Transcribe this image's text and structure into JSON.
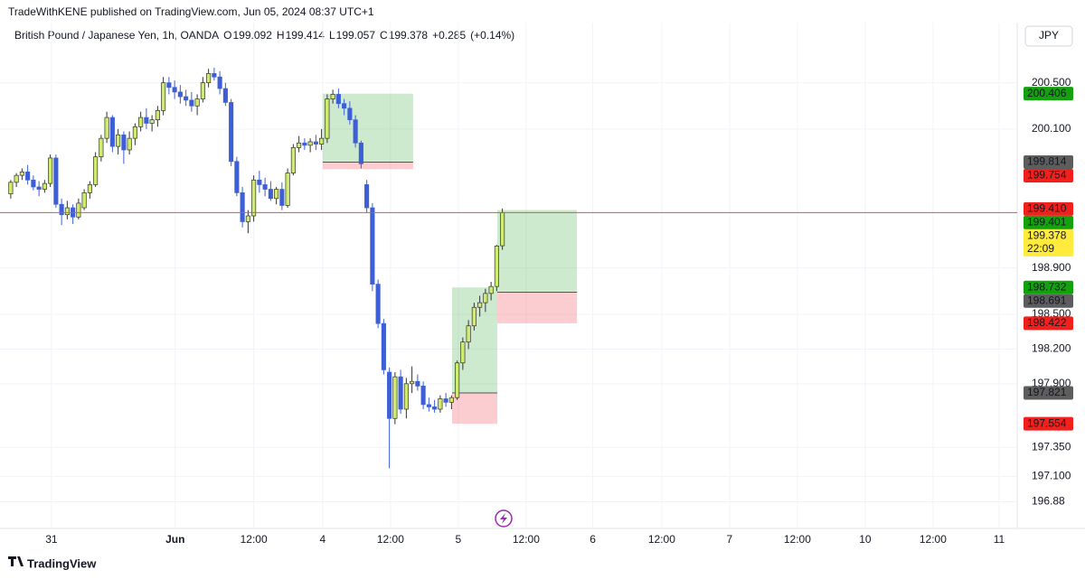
{
  "header": {
    "published": "TradeWithKENE published on TradingView.com, Jun 05, 2024 08:37 UTC+1",
    "currency": "JPY",
    "brand": "TradingView"
  },
  "chart_data": {
    "type": "candlestick",
    "title": "British Pound / Japanese Yen, 1h, OANDA",
    "ohlc": [
      {
        "label": "O",
        "value": 199.092
      },
      {
        "label": "H",
        "value": 199.414
      },
      {
        "label": "L",
        "value": 199.057
      },
      {
        "label": "C",
        "value": 199.378
      }
    ],
    "change": {
      "value": 0.285,
      "label": "+0.285"
    },
    "change_pct": {
      "value": 0.14,
      "label": "(+0.14%)"
    },
    "up_color": "#cfec6e",
    "down_color": "#3d5fd6",
    "open": [
      199.54,
      199.64,
      199.7,
      199.73,
      199.66,
      199.6,
      199.58,
      199.63,
      199.85,
      199.45,
      199.36,
      199.42,
      199.34,
      199.42,
      199.55,
      199.62,
      199.86,
      200.02,
      200.2,
      199.95,
      200.05,
      199.92,
      200.02,
      200.12,
      200.2,
      200.15,
      200.18,
      200.26,
      200.5,
      200.46,
      200.42,
      200.38,
      200.35,
      200.3,
      200.36,
      200.5,
      200.58,
      200.55,
      200.45,
      200.33,
      199.82,
      199.55,
      199.3,
      199.35,
      199.66,
      199.62,
      199.58,
      199.5,
      199.58,
      199.44,
      199.72,
      199.94,
      199.98,
      199.96,
      199.99,
      199.97,
      200.02,
      200.36,
      200.4,
      200.32,
      200.28,
      200.18,
      199.98,
      199.62,
      199.42,
      198.76,
      198.42,
      198.0,
      197.6,
      197.96,
      197.68,
      197.9,
      197.92,
      197.88,
      197.72,
      197.7,
      197.68,
      197.77,
      197.74,
      197.78,
      198.08,
      198.26,
      198.4,
      198.56,
      198.6,
      198.68,
      198.74,
      199.092
    ],
    "high": [
      199.66,
      199.72,
      199.76,
      199.79,
      199.7,
      199.65,
      199.66,
      199.88,
      199.88,
      199.5,
      199.48,
      199.45,
      199.5,
      199.58,
      199.65,
      199.9,
      200.05,
      200.25,
      200.22,
      200.1,
      200.08,
      200.08,
      200.15,
      200.25,
      200.28,
      200.22,
      200.3,
      200.55,
      200.55,
      200.52,
      200.48,
      200.44,
      200.42,
      200.4,
      200.55,
      200.62,
      200.63,
      200.6,
      200.5,
      200.36,
      199.86,
      199.6,
      199.4,
      199.7,
      199.74,
      199.68,
      199.65,
      199.6,
      199.64,
      199.76,
      199.97,
      200.04,
      200.02,
      200.02,
      200.05,
      200.1,
      200.4,
      200.44,
      200.45,
      200.36,
      200.34,
      200.22,
      200.0,
      199.66,
      199.46,
      198.8,
      198.46,
      198.04,
      198.0,
      198.02,
      197.95,
      198.05,
      197.98,
      197.92,
      197.78,
      197.76,
      197.8,
      197.82,
      197.8,
      198.1,
      198.3,
      198.45,
      198.6,
      198.66,
      198.72,
      198.78,
      199.1,
      199.414
    ],
    "low": [
      199.5,
      199.6,
      199.66,
      199.62,
      199.57,
      199.52,
      199.55,
      199.6,
      199.42,
      199.27,
      199.32,
      199.28,
      199.32,
      199.4,
      199.5,
      199.6,
      199.82,
      199.98,
      199.9,
      199.88,
      199.8,
      199.88,
      199.96,
      200.08,
      200.1,
      200.08,
      200.12,
      200.22,
      200.4,
      200.36,
      200.32,
      200.3,
      200.25,
      200.22,
      200.33,
      200.46,
      200.52,
      200.4,
      200.3,
      199.78,
      199.52,
      199.25,
      199.2,
      199.3,
      199.55,
      199.52,
      199.48,
      199.45,
      199.4,
      199.42,
      199.7,
      199.9,
      199.92,
      199.9,
      199.92,
      199.92,
      199.98,
      200.32,
      200.28,
      200.22,
      200.14,
      199.94,
      199.76,
      199.38,
      198.7,
      198.38,
      197.98,
      197.17,
      197.55,
      197.64,
      197.6,
      197.82,
      197.84,
      197.68,
      197.66,
      197.65,
      197.65,
      197.7,
      197.68,
      197.76,
      198.02,
      198.2,
      198.36,
      198.48,
      198.52,
      198.62,
      198.7,
      199.057
    ],
    "close": [
      199.64,
      199.7,
      199.73,
      199.66,
      199.6,
      199.58,
      199.63,
      199.85,
      199.45,
      199.36,
      199.42,
      199.34,
      199.46,
      199.55,
      199.62,
      199.86,
      200.02,
      200.2,
      199.95,
      200.05,
      199.92,
      200.02,
      200.12,
      200.2,
      200.15,
      200.18,
      200.26,
      200.5,
      200.46,
      200.42,
      200.38,
      200.35,
      200.3,
      200.36,
      200.5,
      200.58,
      200.55,
      200.45,
      200.33,
      199.82,
      199.55,
      199.3,
      199.35,
      199.66,
      199.62,
      199.58,
      199.5,
      199.58,
      199.44,
      199.72,
      199.94,
      199.98,
      199.96,
      199.99,
      199.97,
      200.02,
      200.36,
      200.4,
      200.32,
      200.28,
      200.18,
      199.98,
      199.8,
      199.42,
      198.76,
      198.42,
      198.02,
      197.6,
      197.96,
      197.68,
      197.9,
      197.92,
      197.88,
      197.72,
      197.7,
      197.68,
      197.77,
      197.74,
      197.78,
      198.08,
      198.26,
      198.4,
      198.56,
      198.6,
      198.68,
      198.74,
      199.09,
      199.378
    ],
    "xlim": [
      -0.3,
      178.1
    ],
    "xticks": [
      {
        "value": 7.2,
        "label": "31"
      },
      {
        "value": 29.1,
        "label": "Jun"
      },
      {
        "value": 43,
        "label": "12:00"
      },
      {
        "value": 55.2,
        "label": "4"
      },
      {
        "value": 67.2,
        "label": "12:00"
      },
      {
        "value": 79.2,
        "label": "5"
      },
      {
        "value": 91.2,
        "label": "12:00"
      },
      {
        "value": 103,
        "label": "6"
      },
      {
        "value": 115.2,
        "label": "12:00"
      },
      {
        "value": 127.2,
        "label": "7"
      },
      {
        "value": 139.2,
        "label": "12:00"
      },
      {
        "value": 151.2,
        "label": "10"
      },
      {
        "value": 163.2,
        "label": "12:00"
      },
      {
        "value": 174.9,
        "label": "11"
      }
    ],
    "ylim": [
      196.65,
      201.02
    ],
    "yticks": [
      {
        "value": 200.5,
        "label": "200.500"
      },
      {
        "value": 200.1,
        "label": "200.100"
      },
      {
        "value": 198.9,
        "label": "198.900"
      },
      {
        "value": 198.5,
        "label": "198.500"
      },
      {
        "value": 198.2,
        "label": "198.200"
      },
      {
        "value": 197.9,
        "label": "197.900"
      },
      {
        "value": 197.35,
        "label": "197.350"
      },
      {
        "value": 197.1,
        "label": "197.100"
      },
      196.88
    ],
    "grid": true,
    "positions": [
      {
        "x_start": 55.2,
        "x_end": 71.2,
        "target": 200.406,
        "entry": 199.814,
        "stop": 199.754
      },
      {
        "x_start": 78.1,
        "x_end": 86.1,
        "target": 198.732,
        "entry": 197.821,
        "stop": 197.554
      },
      {
        "x_start": 86.1,
        "x_end": 100.2,
        "target": 199.401,
        "entry": 198.691,
        "stop": 198.422
      }
    ],
    "price_tags": [
      {
        "value": 200.406,
        "color": "#13a10e"
      },
      {
        "value": 199.814,
        "color": "#5d5d5d"
      },
      {
        "value": 199.754,
        "color": "#f0201c"
      },
      {
        "value": 199.41,
        "label": "199.410",
        "color": "#f0201c"
      },
      {
        "value": 199.401,
        "color": "#13a10e"
      },
      {
        "value": 199.378,
        "color": "#ffeb3b",
        "countdown": "22:09"
      },
      {
        "value": 198.732,
        "color": "#13a10e"
      },
      {
        "value": 198.691,
        "color": "#5d5d5d"
      },
      {
        "value": 198.422,
        "color": "#f0201c"
      },
      {
        "value": 197.821,
        "color": "#5d5d5d"
      },
      {
        "value": 197.554,
        "color": "#f0201c"
      }
    ]
  }
}
